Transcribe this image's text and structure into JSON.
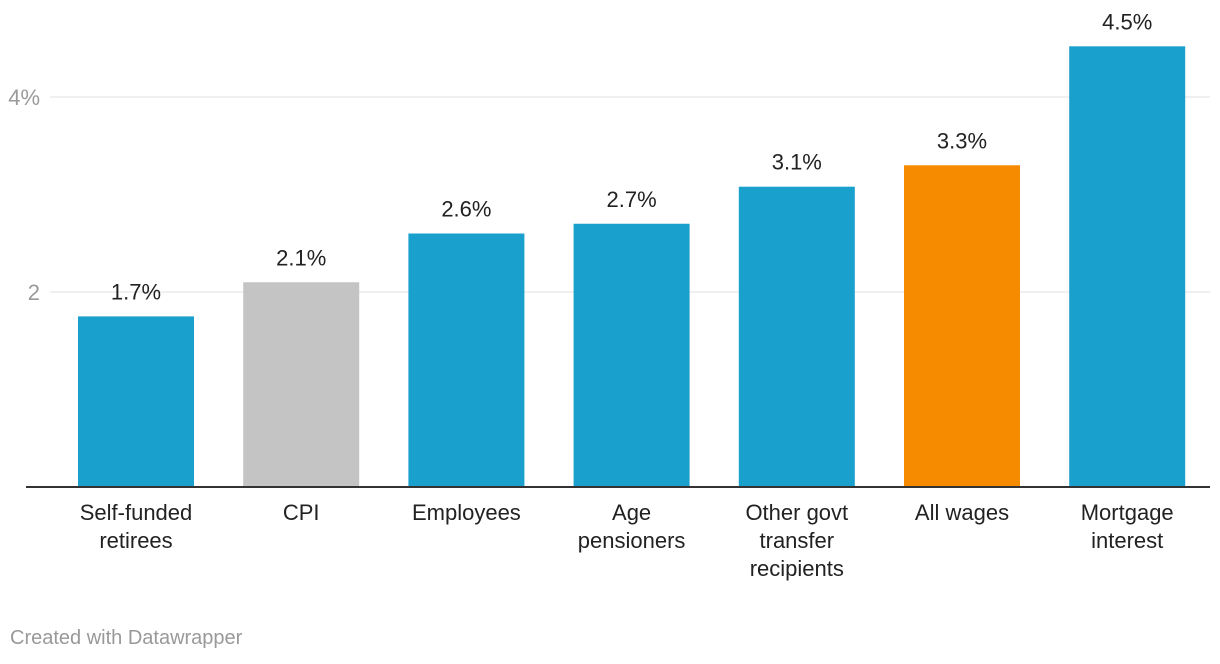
{
  "chart_data": {
    "type": "bar",
    "categories": [
      [
        "Self-funded",
        "retirees"
      ],
      [
        "CPI"
      ],
      [
        "Employees"
      ],
      [
        "Age",
        "pensioners"
      ],
      [
        "Other govt",
        "transfer",
        "recipients"
      ],
      [
        "All wages"
      ],
      [
        "Mortgage",
        "interest"
      ]
    ],
    "values": [
      1.75,
      2.1,
      2.6,
      2.7,
      3.08,
      3.3,
      4.52
    ],
    "value_labels": [
      "1.7%",
      "2.1%",
      "2.6%",
      "2.7%",
      "3.1%",
      "3.3%",
      "4.5%"
    ],
    "bar_colors": [
      "#1aa0cd",
      "#c4c4c4",
      "#1aa0cd",
      "#1aa0cd",
      "#1aa0cd",
      "#f68b00",
      "#1aa0cd"
    ],
    "yticks": [
      {
        "value": 2,
        "label": "2"
      },
      {
        "value": 4,
        "label": "4%"
      }
    ],
    "ylim": [
      0,
      4.5
    ],
    "title": "",
    "xlabel": "",
    "ylabel": ""
  },
  "credit": "Created with Datawrapper"
}
